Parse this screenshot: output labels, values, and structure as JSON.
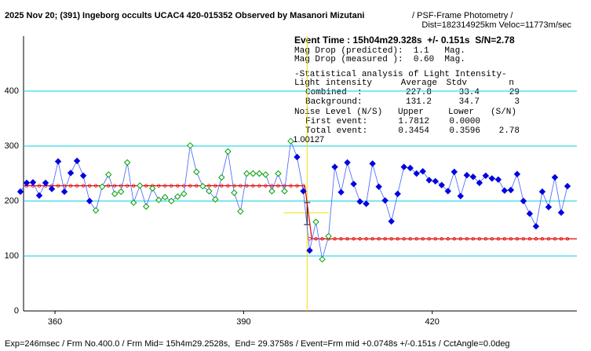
{
  "chart_data": {
    "type": "line",
    "title": "2025 Nov 20; (391) Ingeborg occults UCAC4 420-015352 Observed by Masanori Mizutani",
    "subtitle": " / PSF-Frame Photometry /",
    "subtitle2": "Dist=182314925km Veloc=11773m/sec",
    "footer": "Exp=246msec / Frm No.400.0 / Frm Mid= 15h4m29.2528s,  End= 29.3758s / Event=Frm mid +0.0748s +/-0.151s / CctAngle=0.0deg",
    "annotation": "1.00127",
    "x": [
      354.5,
      355.5,
      356.5,
      357.5,
      358.5,
      359.5,
      360.5,
      361.5,
      362.5,
      363.5,
      364.5,
      365.5,
      366.5,
      367.5,
      368.5,
      369.5,
      370.5,
      371.5,
      372.5,
      373.5,
      374.5,
      375.5,
      376.5,
      377.5,
      378.5,
      379.5,
      380.5,
      381.5,
      382.5,
      383.5,
      384.5,
      385.5,
      386.5,
      387.5,
      388.5,
      389.5,
      390.5,
      391.5,
      392.5,
      393.5,
      394.5,
      395.5,
      396.5,
      397.5,
      398.5,
      399.5,
      400.5,
      401.5,
      402.5,
      403.5,
      404.5,
      405.5,
      406.5,
      407.5,
      408.5,
      409.5,
      410.5,
      411.5,
      412.5,
      413.5,
      414.5,
      415.5,
      416.5,
      417.5,
      418.5,
      419.5,
      420.5,
      421.5,
      422.5,
      423.5,
      424.5,
      425.5,
      426.5,
      427.5,
      428.5,
      429.5,
      430.5,
      431.5,
      432.5,
      433.5,
      434.5,
      435.5,
      436.5,
      437.5,
      438.5,
      439.5,
      440.5,
      441.5
    ],
    "values": [
      217,
      233,
      234,
      210,
      233,
      222,
      272,
      217,
      251,
      273,
      246,
      200,
      183,
      226,
      248,
      213,
      217,
      270,
      197,
      228,
      190,
      223,
      202,
      207,
      200,
      208,
      213,
      301,
      253,
      227,
      218,
      203,
      243,
      290,
      215,
      181,
      250,
      250,
      250,
      248,
      218,
      250,
      218,
      309,
      280,
      218,
      110,
      162,
      94,
      136,
      262,
      216,
      270,
      231,
      199,
      195,
      268,
      226,
      201,
      163,
      213,
      262,
      260,
      250,
      254,
      238,
      236,
      229,
      218,
      253,
      209,
      247,
      244,
      233,
      246,
      241,
      239,
      219,
      220,
      249,
      200,
      177,
      154,
      217,
      189,
      243,
      179,
      227
    ],
    "marker_colors": [
      "#0000e0",
      "#0000e0",
      "#0000e0",
      "#0000e0",
      "#0000e0",
      "#0000e0",
      "#0000e0",
      "#0000e0",
      "#0000e0",
      "#0000e0",
      "#0000e0",
      "#0000e0",
      "#00a000",
      "#00a000",
      "#00a000",
      "#00a000",
      "#00a000",
      "#00a000",
      "#00a000",
      "#00a000",
      "#00a000",
      "#00a000",
      "#00a000",
      "#00a000",
      "#00a000",
      "#00a000",
      "#00a000",
      "#00a000",
      "#00a000",
      "#00a000",
      "#00a000",
      "#00a000",
      "#00a000",
      "#00a000",
      "#00a000",
      "#00a000",
      "#00a000",
      "#00a000",
      "#00a000",
      "#00a000",
      "#00a000",
      "#00a000",
      "#00a000",
      "#00a000",
      "#0000e0",
      "#0000e0",
      "#0000e0",
      "#00a000",
      "#00a000",
      "#00a000",
      "#0000e0",
      "#0000e0",
      "#0000e0",
      "#0000e0",
      "#0000e0",
      "#0000e0",
      "#0000e0",
      "#0000e0",
      "#0000e0",
      "#0000e0",
      "#0000e0",
      "#0000e0",
      "#0000e0",
      "#0000e0",
      "#0000e0",
      "#0000e0",
      "#0000e0",
      "#0000e0",
      "#0000e0",
      "#0000e0",
      "#0000e0",
      "#0000e0",
      "#0000e0",
      "#0000e0",
      "#0000e0",
      "#0000e0",
      "#0000e0",
      "#0000e0",
      "#0000e0",
      "#0000e0",
      "#0000e0",
      "#0000e0",
      "#0000e0",
      "#0000e0",
      "#0000e0",
      "#0000e0",
      "#0000e0",
      "#0000e0"
    ],
    "line_color": "#4060ff",
    "model_color": "#e00000",
    "event_x": 400.1,
    "event_color": "#f0e000",
    "grid_color": "#00d0e0",
    "xlim": [
      355,
      443
    ],
    "xticks": [
      360,
      390,
      420
    ],
    "ylim": [
      0,
      500
    ],
    "yticks": [
      0,
      100,
      200,
      300,
      400
    ],
    "grid": true
  },
  "panel": {
    "event_time": "Event Time : 15h04m29.328s  +/- 0.151s  S/N=2.78",
    "mag_pred": "Mag Drop (predicted):  1.1   Mag.",
    "mag_meas": "Mag Drop (measured ):  0.60  Mag.",
    "stats_title": "-Statistical analysis of Light Intensity-",
    "stats_header": [
      "Light intensity",
      "Average",
      "Stdv",
      "n"
    ],
    "stats_rows": [
      {
        "label": "Combined  :",
        "average": 227.8,
        "stdv": 33.4,
        "n": 29
      },
      {
        "label": "Background:",
        "average": 131.2,
        "stdv": 34.7,
        "n": 3
      }
    ],
    "noise_header": [
      "Noise Level (N/S)",
      "Upper",
      "Lower",
      "(S/N)"
    ],
    "noise_rows": [
      [
        "First event:",
        "1.7812",
        "0.0000"
      ],
      [
        "Total event:",
        "0.3454",
        "0.3596",
        "2.78"
      ]
    ]
  }
}
